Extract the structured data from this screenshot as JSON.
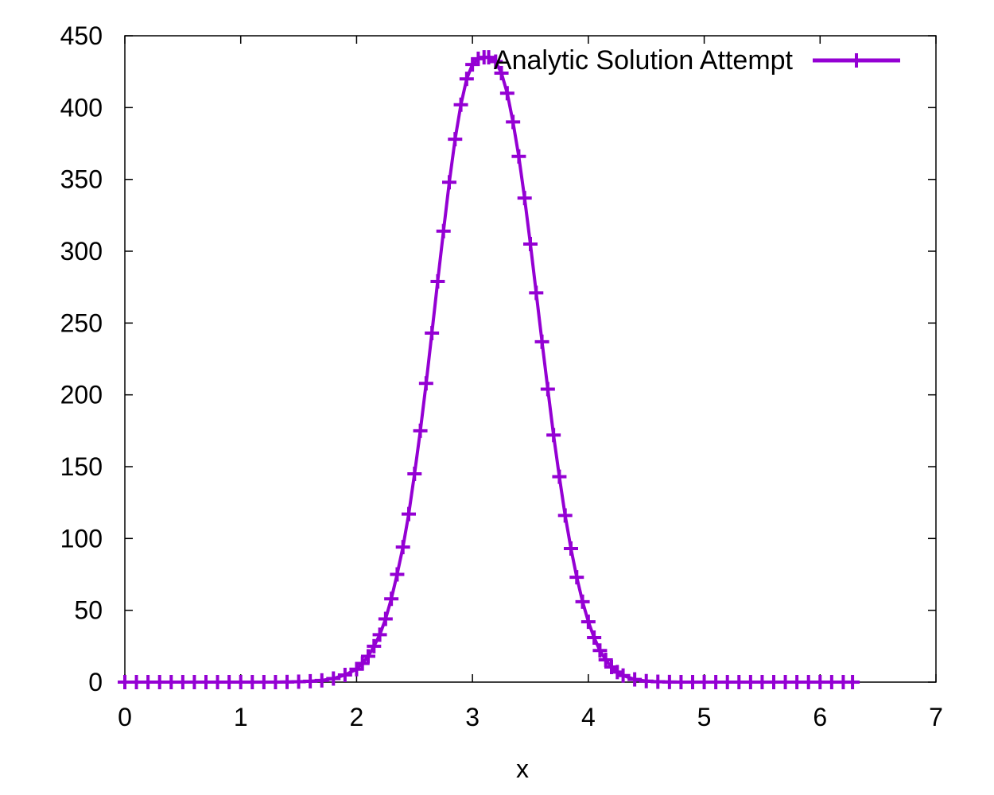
{
  "chart_data": {
    "type": "line",
    "title": "",
    "xlabel": "x",
    "ylabel": "",
    "xlim": [
      0,
      7
    ],
    "ylim": [
      0,
      450
    ],
    "xticks": [
      0,
      1,
      2,
      3,
      4,
      5,
      6,
      7
    ],
    "yticks": [
      0,
      50,
      100,
      150,
      200,
      250,
      300,
      350,
      400,
      450
    ],
    "grid": false,
    "legend": "top-right",
    "series": [
      {
        "name": "Analytic Solution Attempt",
        "color": "#9400d3",
        "marker": "plus",
        "x": [
          0.0,
          0.1,
          0.2,
          0.3,
          0.4,
          0.5,
          0.6,
          0.7,
          0.8,
          0.9,
          1.0,
          1.1,
          1.2,
          1.3,
          1.4,
          1.5,
          1.6,
          1.7,
          1.8,
          1.9,
          2.0,
          2.05,
          2.1,
          2.15,
          2.2,
          2.25,
          2.3,
          2.35,
          2.4,
          2.45,
          2.5,
          2.55,
          2.6,
          2.65,
          2.7,
          2.75,
          2.8,
          2.85,
          2.9,
          2.95,
          3.0,
          3.05,
          3.1,
          3.14,
          3.2,
          3.25,
          3.3,
          3.35,
          3.4,
          3.45,
          3.5,
          3.55,
          3.6,
          3.65,
          3.7,
          3.75,
          3.8,
          3.85,
          3.9,
          3.95,
          4.0,
          4.05,
          4.1,
          4.15,
          4.2,
          4.25,
          4.3,
          4.4,
          4.5,
          4.6,
          4.7,
          4.8,
          4.9,
          5.0,
          5.1,
          5.2,
          5.3,
          5.4,
          5.5,
          5.6,
          5.7,
          5.8,
          5.9,
          6.0,
          6.1,
          6.2,
          6.28
        ],
        "y": [
          0,
          0,
          0,
          0,
          0,
          0,
          0,
          0,
          0,
          0,
          0,
          0,
          0,
          0,
          0.1,
          0.3,
          0.6,
          1.2,
          2.5,
          5,
          9,
          13,
          18,
          25,
          33,
          44,
          58,
          75,
          94,
          117,
          145,
          175,
          208,
          243,
          279,
          314,
          348,
          378,
          402,
          420,
          430,
          434,
          435,
          435,
          432,
          424,
          410,
          390,
          366,
          337,
          305,
          271,
          237,
          204,
          172,
          143,
          116,
          93,
          73,
          56,
          42,
          31,
          22,
          15.5,
          10.5,
          7,
          4.6,
          1.9,
          0.7,
          0.25,
          0.08,
          0,
          0,
          0,
          0,
          0,
          0,
          0,
          0,
          0,
          0,
          0,
          0,
          0,
          0,
          0,
          0
        ]
      }
    ]
  }
}
